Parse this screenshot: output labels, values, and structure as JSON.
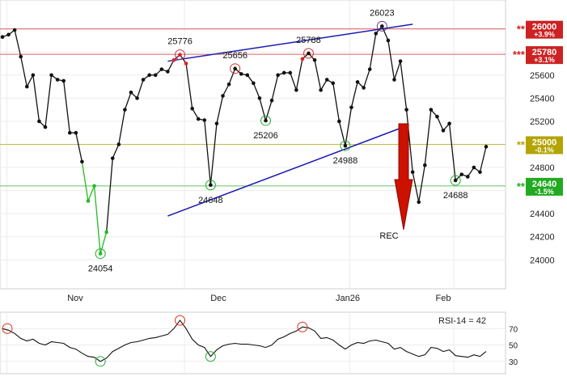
{
  "chart_data": [
    {
      "type": "line",
      "panel": "price",
      "title": "",
      "xlabel": "",
      "ylabel": "",
      "ylim": [
        23750,
        26250
      ],
      "x_tick_labels": [
        "Nov",
        "Dec",
        "Jan26",
        "Feb"
      ],
      "y_tick_labels": [
        "24000",
        "24200",
        "24400",
        "24600",
        "24800",
        "25000",
        "25200",
        "25400",
        "25600",
        "25800",
        "26000"
      ],
      "grid": true,
      "series": [
        {
          "values": [
            25930,
            25950,
            25990,
            25760,
            25500,
            25600,
            25200,
            25150,
            25600,
            25560,
            25550,
            25100,
            25100,
            24850,
            24510,
            24640,
            24054,
            24240,
            24880,
            25000,
            25300,
            25450,
            25400,
            25560,
            25600,
            25600,
            25650,
            25630,
            25730,
            25776,
            25700,
            25310,
            25220,
            25210,
            24648,
            25180,
            25420,
            25520,
            25656,
            25610,
            25600,
            25530,
            25400,
            25206,
            25380,
            25600,
            25620,
            25620,
            25470,
            25740,
            25788,
            25730,
            25470,
            25560,
            25530,
            25200,
            24988,
            25320,
            25540,
            25490,
            25650,
            25960,
            26023,
            25900,
            25560,
            25720,
            25300,
            24760,
            24500,
            24820,
            25300,
            25240,
            25120,
            25180,
            24688,
            24740,
            24720,
            24800,
            24760,
            24980
          ]
        }
      ],
      "highlights": {
        "tops": [
          25776,
          25656,
          25788,
          26023
        ],
        "bottoms": [
          24054,
          24648,
          25206,
          24988,
          24688
        ]
      },
      "data_labels": [
        "25776",
        "25656",
        "25788",
        "26023",
        "24054",
        "24648",
        "25206",
        "24988",
        "24688"
      ],
      "trendlines": [
        {
          "name": "upper-resistance",
          "from_value": 25720,
          "to_value": 26040,
          "color": "#1b1bb0"
        },
        {
          "name": "lower-support",
          "from_value": 24380,
          "to_value": 25140,
          "color": "#1b1bb0"
        }
      ],
      "horizontal_levels": [
        {
          "value": 26000,
          "stars": "**",
          "label": "26000",
          "change": "+3.9%",
          "color": "#cc2222"
        },
        {
          "value": 25780,
          "stars": "***",
          "label": "25780",
          "change": "+3.1%",
          "color": "#cc2222"
        },
        {
          "value": 25000,
          "stars": "**",
          "label": "25000",
          "change": "-0.1%",
          "color": "#b3a400"
        },
        {
          "value": 24640,
          "stars": "**",
          "label": "24640",
          "change": "-1.5%",
          "color": "#22aa22"
        }
      ],
      "annotation": {
        "text": "REC",
        "color": "#cc1100"
      }
    },
    {
      "type": "line",
      "panel": "rsi",
      "title": "RSI-14 = 42",
      "ylim": [
        15,
        90
      ],
      "y_tick_labels": [
        "70",
        "50",
        "30"
      ],
      "series": [
        {
          "values": [
            70,
            68,
            64,
            58,
            55,
            57,
            52,
            50,
            54,
            53,
            52,
            47,
            45,
            40,
            36,
            35,
            30,
            34,
            42,
            46,
            50,
            53,
            54,
            56,
            58,
            59,
            61,
            63,
            70,
            80,
            70,
            57,
            50,
            47,
            36,
            44,
            49,
            51,
            52,
            51,
            51,
            50,
            49,
            47,
            50,
            57,
            60,
            64,
            67,
            72,
            71,
            67,
            58,
            59,
            56,
            50,
            45,
            50,
            53,
            52,
            55,
            56,
            54,
            52,
            45,
            47,
            42,
            39,
            36,
            38,
            47,
            46,
            42,
            44,
            37,
            36,
            35,
            38,
            36,
            42
          ]
        }
      ],
      "highlights": {
        "overbought": [
          70,
          80,
          72
        ],
        "oversold": [
          30,
          36
        ]
      }
    }
  ]
}
